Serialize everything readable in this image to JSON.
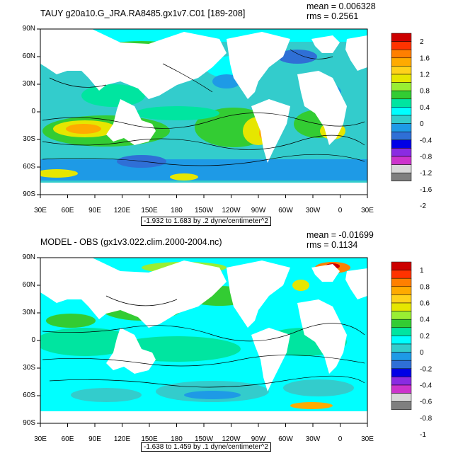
{
  "colors": {
    "levels": [
      "#7f7f7f",
      "#d8d8d8",
      "#cc33cc",
      "#8a2be2",
      "#0000e6",
      "#2f6fd6",
      "#1e9ae6",
      "#33cccc",
      "#00ffff",
      "#00e5a0",
      "#33cc33",
      "#99ee33",
      "#e6e600",
      "#ffd21a",
      "#ffaa00",
      "#ff7f00",
      "#ff3300",
      "#cc0000"
    ],
    "land": "#ffffff",
    "contour": "#000000"
  },
  "panels": [
    {
      "title": "TAUY g20a10.G_JRA.RA8485.gx1v7.C01 [189-208]",
      "mean_label": "mean = 0.006328",
      "rms_label": "rms = 0.2561",
      "subtitle": "-1.932 to 1.683 by .2 dyne/centimeter^2",
      "colorbar_labels": [
        "2",
        "1.6",
        "1.2",
        "0.8",
        "0.4",
        "0",
        "-0.4",
        "-0.8",
        "-1.2",
        "-1.6",
        "-2"
      ]
    },
    {
      "title": "MODEL - OBS (gx1v3.022.clim.2000-2004.nc)",
      "mean_label": "mean = -0.01699",
      "rms_label": "rms = 0.1134",
      "subtitle": "-1.638 to 1.459 by .1 dyne/centimeter^2",
      "colorbar_labels": [
        "1",
        "0.8",
        "0.6",
        "0.4",
        "0.2",
        "0",
        "-0.2",
        "-0.4",
        "-0.6",
        "-0.8",
        "-1"
      ]
    }
  ],
  "axes": {
    "lat_labels": [
      "90N",
      "60N",
      "30N",
      "0",
      "30S",
      "60S",
      "90S"
    ],
    "lon_labels": [
      "30E",
      "60E",
      "90E",
      "120E",
      "150E",
      "180",
      "150W",
      "120W",
      "90W",
      "60W",
      "30W",
      "0",
      "30E"
    ]
  }
}
